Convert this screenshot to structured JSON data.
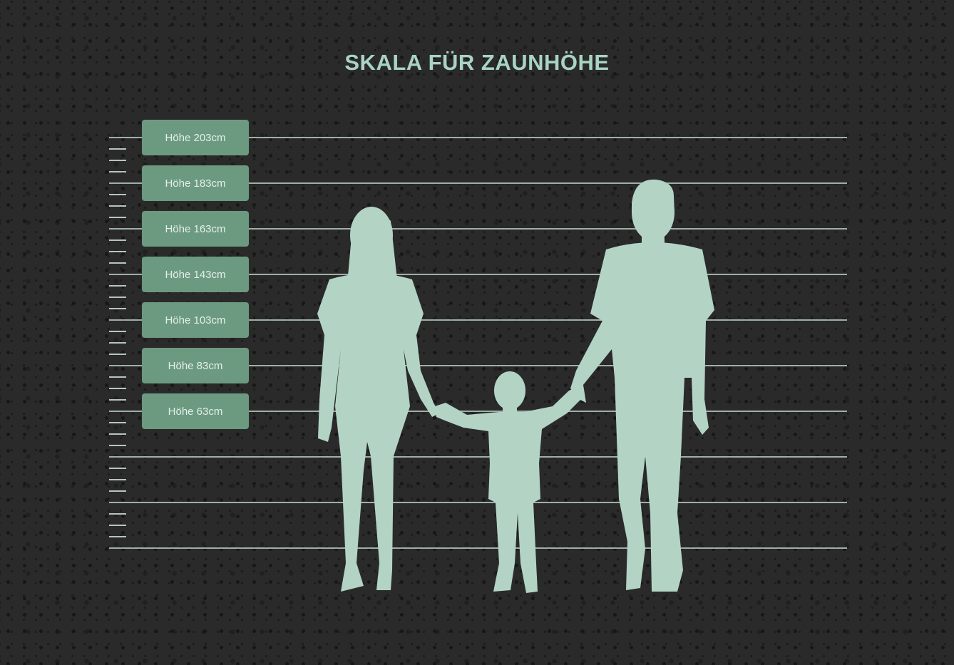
{
  "title": "SKALA FÜR ZAUNHÖHE",
  "labels": [
    "Höhe 203cm",
    "Höhe 183cm",
    "Höhe 163cm",
    "Höhe 143cm",
    "Höhe 103cm",
    "Höhe 83cm",
    "Höhe 63cm"
  ],
  "figures": [
    "woman-silhouette",
    "child-silhouette",
    "man-silhouette"
  ],
  "colors": {
    "background": "#2a2a2a",
    "title": "#a9d4c3",
    "label_box": "#6c9a80",
    "silhouette": "#b3d4c5",
    "line": "#9fb0a8"
  }
}
